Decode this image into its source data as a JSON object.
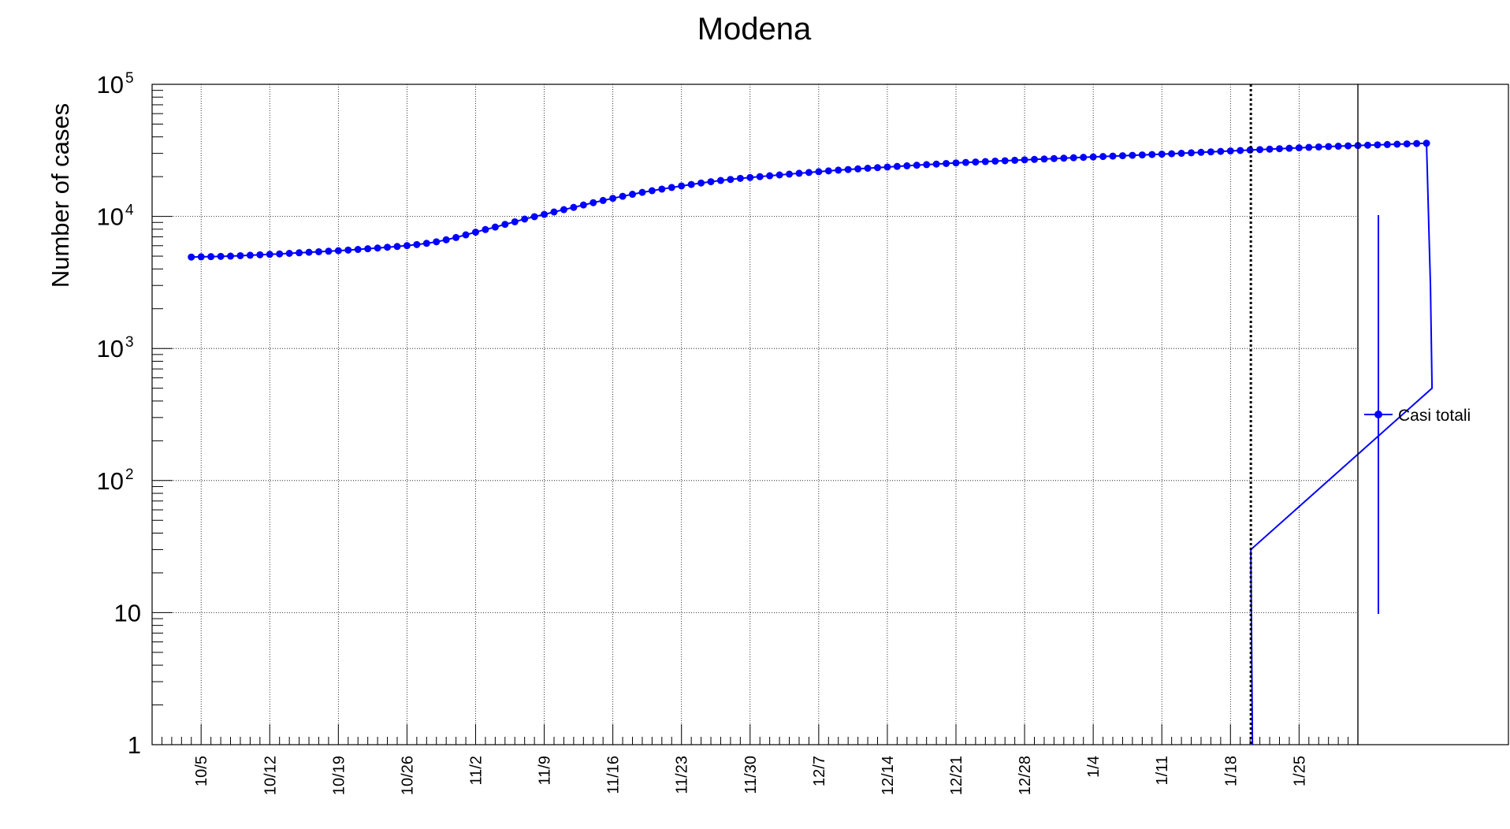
{
  "chart_data": {
    "type": "line",
    "title": "Modena",
    "ylabel": "Number of cases",
    "xlabel": "",
    "y_scale": "log",
    "ylim": [
      1,
      100000
    ],
    "x_start": "9/30",
    "xlim": [
      "9/30",
      "1/31"
    ],
    "grid": true,
    "legend_position": "right",
    "ytick_labels": [
      {
        "value": 1,
        "base": "1",
        "exp": ""
      },
      {
        "value": 10,
        "base": "10",
        "exp": ""
      },
      {
        "value": 100,
        "base": "10",
        "exp": "2"
      },
      {
        "value": 1000,
        "base": "10",
        "exp": "3"
      },
      {
        "value": 10000,
        "base": "10",
        "exp": "4"
      },
      {
        "value": 100000,
        "base": "10",
        "exp": "5"
      }
    ],
    "xtick_labels": [
      "10/5",
      "10/12",
      "10/19",
      "10/26",
      "11/2",
      "11/9",
      "11/16",
      "11/23",
      "11/30",
      "12/7",
      "12/14",
      "12/21",
      "12/28",
      "1/4",
      "1/11",
      "1/18",
      "1/25"
    ],
    "vertical_marker": "1/20",
    "series": [
      {
        "name": "Casi totali",
        "color": "#0000ff",
        "start": "10/4",
        "values": [
          4920,
          4940,
          4960,
          4980,
          5000,
          5040,
          5080,
          5120,
          5160,
          5200,
          5250,
          5300,
          5350,
          5400,
          5450,
          5500,
          5560,
          5620,
          5690,
          5760,
          5840,
          5920,
          6010,
          6120,
          6250,
          6420,
          6650,
          6920,
          7250,
          7600,
          7950,
          8300,
          8700,
          9100,
          9550,
          9950,
          10350,
          10800,
          11250,
          11700,
          12200,
          12700,
          13200,
          13700,
          14200,
          14700,
          15200,
          15650,
          16100,
          16550,
          17000,
          17450,
          17900,
          18300,
          18700,
          19050,
          19400,
          19700,
          20000,
          20300,
          20600,
          20900,
          21200,
          21500,
          21800,
          22100,
          22400,
          22650,
          22900,
          23150,
          23400,
          23650,
          23900,
          24150,
          24400,
          24650,
          24900,
          25150,
          25400,
          25600,
          25800,
          26000,
          26200,
          26400,
          26600,
          26800,
          27000,
          27200,
          27400,
          27600,
          27800,
          28000,
          28200,
          28400,
          28600,
          28800,
          29000,
          29200,
          29400,
          29600,
          29800,
          30050,
          30300,
          30550,
          30800,
          31050,
          31300,
          31550,
          31800,
          32050,
          32300,
          32550,
          32800,
          33050,
          33300,
          33550,
          33800,
          34000,
          34200,
          34400,
          34600,
          34800,
          35000,
          35200,
          35400,
          35600,
          35800
        ]
      }
    ]
  }
}
